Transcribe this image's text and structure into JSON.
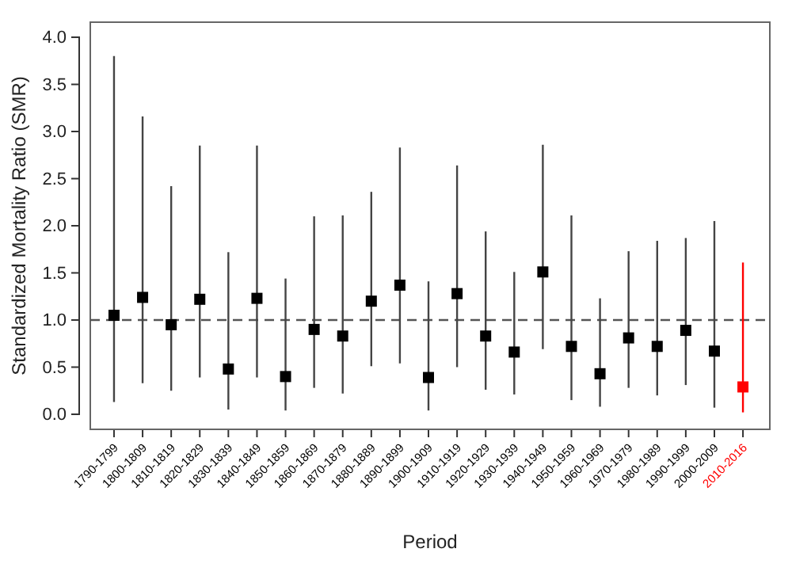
{
  "chart_data": {
    "type": "scatter",
    "xlabel": "Period",
    "ylabel": "Standardized Mortality Ratio (SMR)",
    "categories": [
      "1790-1799",
      "1800-1809",
      "1810-1819",
      "1820-1829",
      "1830-1839",
      "1840-1849",
      "1850-1859",
      "1860-1869",
      "1870-1879",
      "1880-1889",
      "1890-1899",
      "1900-1909",
      "1910-1919",
      "1920-1929",
      "1930-1939",
      "1940-1949",
      "1950-1959",
      "1960-1969",
      "1970-1979",
      "1980-1989",
      "1990-1999",
      "2000-2009",
      "2010-2016"
    ],
    "values": [
      1.05,
      1.24,
      0.95,
      1.22,
      0.48,
      1.23,
      0.4,
      0.9,
      0.83,
      1.2,
      1.37,
      0.39,
      1.28,
      0.83,
      0.66,
      1.51,
      0.72,
      0.43,
      0.81,
      0.72,
      0.89,
      0.67,
      0.29
    ],
    "errors": [
      [
        0.13,
        3.8
      ],
      [
        0.33,
        3.16
      ],
      [
        0.25,
        2.42
      ],
      [
        0.39,
        2.85
      ],
      [
        0.05,
        1.72
      ],
      [
        0.39,
        2.85
      ],
      [
        0.04,
        1.44
      ],
      [
        0.28,
        2.1
      ],
      [
        0.22,
        2.11
      ],
      [
        0.51,
        2.36
      ],
      [
        0.54,
        2.83
      ],
      [
        0.04,
        1.41
      ],
      [
        0.5,
        2.64
      ],
      [
        0.26,
        1.94
      ],
      [
        0.21,
        1.51
      ],
      [
        0.69,
        2.86
      ],
      [
        0.15,
        2.11
      ],
      [
        0.08,
        1.23
      ],
      [
        0.28,
        1.73
      ],
      [
        0.2,
        1.84
      ],
      [
        0.31,
        1.87
      ],
      [
        0.07,
        2.05
      ],
      [
        0.02,
        1.61
      ]
    ],
    "colors": [
      "#000000",
      "#000000",
      "#000000",
      "#000000",
      "#000000",
      "#000000",
      "#000000",
      "#000000",
      "#000000",
      "#000000",
      "#000000",
      "#000000",
      "#000000",
      "#000000",
      "#000000",
      "#000000",
      "#000000",
      "#000000",
      "#000000",
      "#000000",
      "#000000",
      "#000000",
      "#ff0000"
    ],
    "ylim": [
      -0.16,
      4.16
    ],
    "yticks": [
      {
        "value": 0,
        "label": "0.0"
      },
      {
        "value": 0.5,
        "label": "0.5"
      },
      {
        "value": 1,
        "label": "1.0"
      },
      {
        "value": 1.5,
        "label": "1.5"
      },
      {
        "value": 2,
        "label": "2.0"
      },
      {
        "value": 2.5,
        "label": "2.5"
      },
      {
        "value": 3,
        "label": "3.0"
      },
      {
        "value": 3.5,
        "label": "3.5"
      },
      {
        "value": 4,
        "label": "4.0"
      }
    ],
    "ref_lines": [
      {
        "axis": "y",
        "value": 1,
        "line_style": "dashed",
        "color": "#555555"
      }
    ],
    "marker": "square"
  }
}
